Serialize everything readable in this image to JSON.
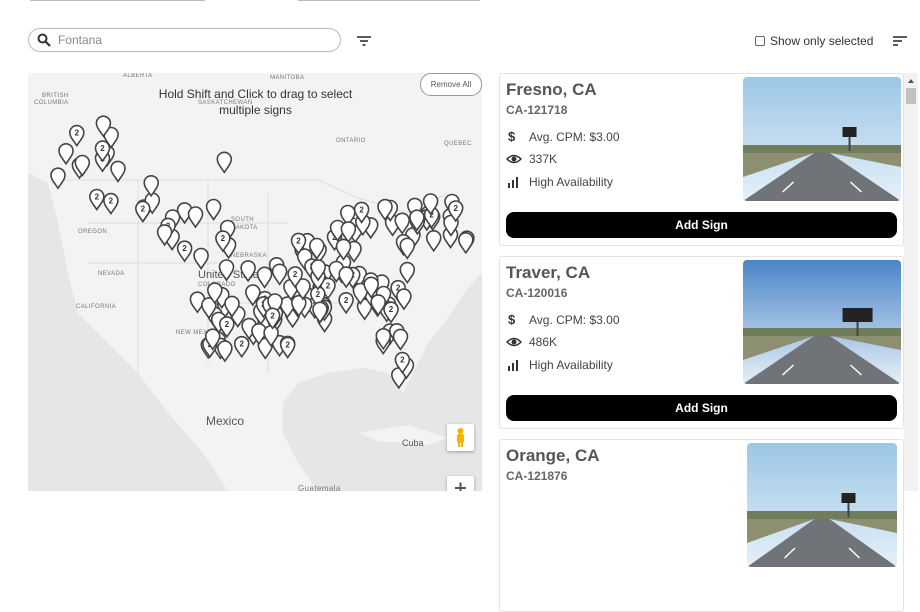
{
  "search": {
    "placeholder": "Fontana"
  },
  "show_only_selected": "Show only selected",
  "map": {
    "instruction_line1": "Hold Shift and Click to drag to select",
    "instruction_line2": "multiple signs",
    "remove_all": "Remove All",
    "cluster_count": "2",
    "labels": [
      "BRITISH",
      "COLUMBIA",
      "MANITOBA",
      "SASKATCHEWAN",
      "ALBERTA",
      "ONTARIO",
      "QUEBEC",
      "OREGON",
      "NEVADA",
      "CALIFORNIA",
      "SOUTH",
      "DAKOTA",
      "NEBRASKA",
      "COLORADO",
      "United States",
      "NEW MEXICO",
      "Mexico",
      "Cuba",
      "Guatemala"
    ]
  },
  "add_button": "Add Sign",
  "signs": [
    {
      "title": "Fresno, CA",
      "id": "CA-121718",
      "cpm": "Avg. CPM: $3.00",
      "impressions": "337K",
      "availability": "High Availability"
    },
    {
      "title": "Traver, CA",
      "id": "CA-120016",
      "cpm": "Avg. CPM: $3.00",
      "impressions": "486K",
      "availability": "High Availability"
    },
    {
      "title": "Orange, CA",
      "id": "CA-121876"
    }
  ]
}
